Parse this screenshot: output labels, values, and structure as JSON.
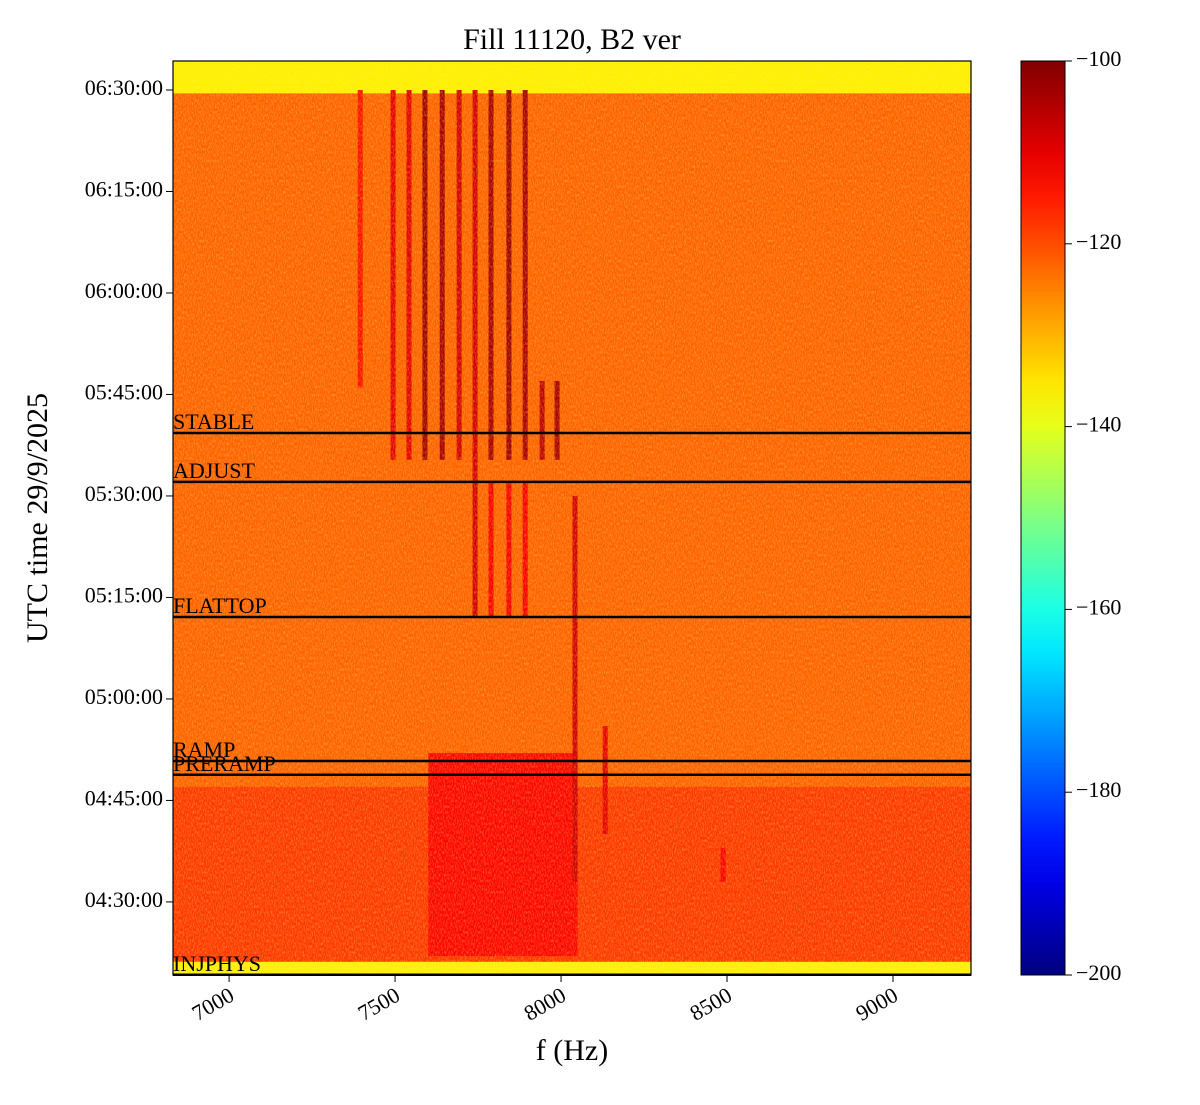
{
  "chart_data": {
    "type": "spectrogram",
    "title": "Fill 11120, B2 ver",
    "x_label": "f (Hz)",
    "y_label": "UTC time 29/9/2025",
    "xlim": [
      6831,
      9235
    ],
    "xticks": [
      7000,
      7500,
      8000,
      8500,
      9000
    ],
    "ylim": [
      "04:19:12",
      "06:34:17"
    ],
    "yticks": [
      "04:30:00",
      "04:45:00",
      "05:00:00",
      "05:15:00",
      "05:30:00",
      "05:45:00",
      "06:00:00",
      "06:15:00",
      "06:30:00"
    ],
    "colormap": "jet",
    "clim": [
      -200,
      -100
    ],
    "cticks": [
      {
        "value": -100,
        "label": "−100"
      },
      {
        "value": -120,
        "label": "−120"
      },
      {
        "value": -140,
        "label": "−140"
      },
      {
        "value": -160,
        "label": "−160"
      },
      {
        "value": -180,
        "label": "−180"
      },
      {
        "value": -200,
        "label": "−200"
      }
    ],
    "background_level": -122,
    "regions": [
      {
        "t": [
          "06:29:30",
          "06:34:17"
        ],
        "f": [
          6831,
          9235
        ],
        "level": -136
      },
      {
        "t": [
          "04:19:12",
          "04:21:10"
        ],
        "f": [
          6831,
          9235
        ],
        "level": -136
      },
      {
        "t": [
          "04:21:10",
          "04:47:00"
        ],
        "f": [
          6831,
          9235
        ],
        "level": -118
      },
      {
        "t": [
          "04:22:00",
          "04:52:00"
        ],
        "f": [
          7600,
          8050
        ],
        "level": -113
      }
    ],
    "lines": [
      {
        "f": 7395,
        "t": [
          "05:46:00",
          "06:30:00"
        ],
        "level": -114
      },
      {
        "f": 7494,
        "t": [
          "05:35:20",
          "06:30:00"
        ],
        "level": -110
      },
      {
        "f": 7542,
        "t": [
          "05:35:20",
          "06:30:00"
        ],
        "level": -110
      },
      {
        "f": 7590,
        "t": [
          "05:35:20",
          "06:30:00"
        ],
        "level": -103
      },
      {
        "f": 7642,
        "t": [
          "05:35:20",
          "06:30:00"
        ],
        "level": -104
      },
      {
        "f": 7693,
        "t": [
          "05:35:20",
          "06:30:00"
        ],
        "level": -108
      },
      {
        "f": 7741,
        "t": [
          "05:12:00",
          "06:30:00"
        ],
        "level": -108
      },
      {
        "f": 7789,
        "t": [
          "05:35:20",
          "06:30:00"
        ],
        "level": -104
      },
      {
        "f": 7843,
        "t": [
          "05:35:20",
          "06:30:00"
        ],
        "level": -103
      },
      {
        "f": 7892,
        "t": [
          "05:35:20",
          "06:30:00"
        ],
        "level": -104
      },
      {
        "f": 7943,
        "t": [
          "05:35:20",
          "05:47:00"
        ],
        "level": -106
      },
      {
        "f": 7988,
        "t": [
          "05:35:20",
          "05:47:00"
        ],
        "level": -104
      },
      {
        "f": 7789,
        "t": [
          "05:12:00",
          "05:32:00"
        ],
        "level": -112
      },
      {
        "f": 7843,
        "t": [
          "05:12:00",
          "05:32:00"
        ],
        "level": -112
      },
      {
        "f": 7892,
        "t": [
          "05:12:00",
          "05:32:00"
        ],
        "level": -112
      },
      {
        "f": 8042,
        "t": [
          "04:33:00",
          "05:30:00"
        ],
        "level": -108
      },
      {
        "f": 8133,
        "t": [
          "04:40:00",
          "04:56:00"
        ],
        "level": -110
      },
      {
        "f": 8488,
        "t": [
          "04:33:00",
          "04:38:00"
        ],
        "level": -112
      }
    ],
    "events": [
      {
        "label": "STABLE",
        "t": "05:39:18"
      },
      {
        "label": "ADJUST",
        "t": "05:32:05"
      },
      {
        "label": "FLATTOP",
        "t": "05:12:07"
      },
      {
        "label": "RAMP",
        "t": "04:50:50"
      },
      {
        "label": "PRERAMP",
        "t": "04:48:48"
      },
      {
        "label": "INJPHYS",
        "t": "04:19:14"
      }
    ]
  }
}
